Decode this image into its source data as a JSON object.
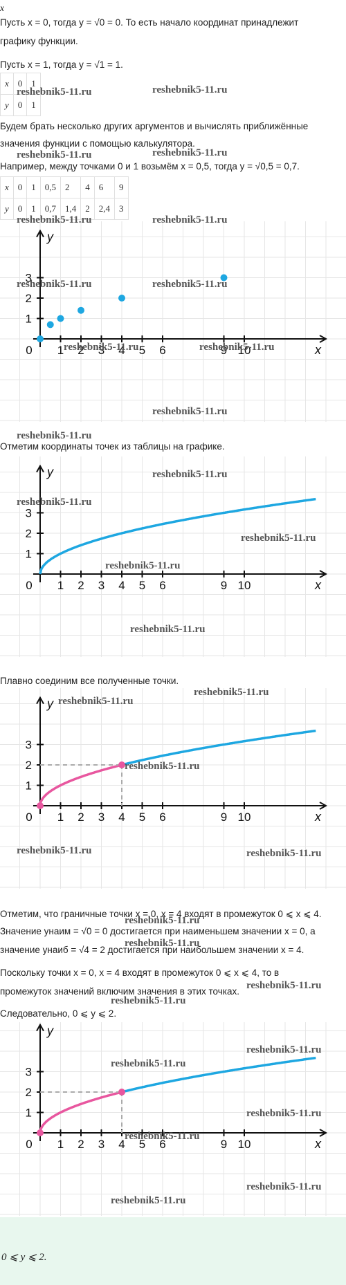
{
  "top_var": "x",
  "para1": "Пусть x = 0, тогда y = √0 = 0. То есть начало координат принадлежит",
  "para1b": "графику функции.",
  "para2": "Пусть x = 1, тогда y = √1 = 1.",
  "table1": {
    "x_label": "x",
    "y_label": "y",
    "x": [
      "0",
      "1"
    ],
    "y": [
      "0",
      "1"
    ]
  },
  "para3": "Будем брать несколько других аргументов и вычислять приближённые",
  "para3b": "значения функции с помощью калькулятора.",
  "para4": "Например, между точками 0 и 1 возьмём x = 0,5, тогда y = √0,5 = 0,7.",
  "table2": {
    "x_label": "x",
    "y_label": "y",
    "x": [
      "0",
      "1",
      "0,5",
      "2",
      "4",
      "6",
      "9"
    ],
    "y": [
      "0",
      "1",
      "0,7",
      "1,4",
      "2",
      "2,4",
      "3"
    ]
  },
  "watermark": "reshebnik5-11.ru",
  "para5": "Отметим координаты точек из таблицы на графике.",
  "para6": "Плавно соединим все полученные точки.",
  "para7": "Отметим, что граничные точки x = 0, x = 4 входят в промежуток 0 ⩽ x ⩽ 4.",
  "para8": "Значение yнаим = √0 = 0 достигается при наименьшем значении x = 0, а",
  "para8b": "значение yнаиб = √4 = 2 достигается при наибольшем значении x = 4.",
  "para9": "Поскольку точки x = 0, x = 4 входят в промежуток 0 ⩽ x ⩽ 4, то в",
  "para9b": "промежуток значений включим значения в этих точках.",
  "para10": "Следовательно, 0 ⩽ y ⩽ 2.",
  "answer": "0 ⩽ y ⩽ 2.",
  "colors": {
    "blue": "#1ea7e1",
    "pink": "#e8579f",
    "grid": "#e6e6e6"
  },
  "chart_data": [
    {
      "type": "scatter",
      "xlabel": "x",
      "ylabel": "y",
      "x_ticks": [
        "0",
        "1",
        "2",
        "3",
        "4",
        "5",
        "6",
        "9",
        "10"
      ],
      "y_ticks": [
        "1",
        "2",
        "3"
      ],
      "points": [
        [
          0,
          0
        ],
        [
          0.5,
          0.7
        ],
        [
          1,
          1
        ],
        [
          2,
          1.4
        ],
        [
          4,
          2
        ],
        [
          9,
          3
        ]
      ]
    },
    {
      "type": "line",
      "xlabel": "x",
      "ylabel": "y",
      "function": "y = √x",
      "x_ticks": [
        "0",
        "1",
        "2",
        "3",
        "4",
        "5",
        "6",
        "9",
        "10"
      ],
      "y_ticks": [
        "1",
        "2",
        "3"
      ],
      "x_range": [
        0,
        13.5
      ]
    },
    {
      "type": "line",
      "xlabel": "x",
      "ylabel": "y",
      "function": "y = √x",
      "highlight_range": [
        0,
        4
      ],
      "x_ticks": [
        "0",
        "1",
        "2",
        "3",
        "4",
        "5",
        "6",
        "9",
        "10"
      ],
      "y_ticks": [
        "1",
        "2",
        "3"
      ],
      "x_range": [
        0,
        13.5
      ]
    },
    {
      "type": "line",
      "xlabel": "x",
      "ylabel": "y",
      "function": "y = √x",
      "highlight_range": [
        0,
        4
      ],
      "x_ticks": [
        "0",
        "1",
        "2",
        "3",
        "4",
        "5",
        "6",
        "9",
        "10"
      ],
      "y_ticks": [
        "1",
        "2",
        "3"
      ],
      "x_range": [
        0,
        13.5
      ]
    }
  ]
}
